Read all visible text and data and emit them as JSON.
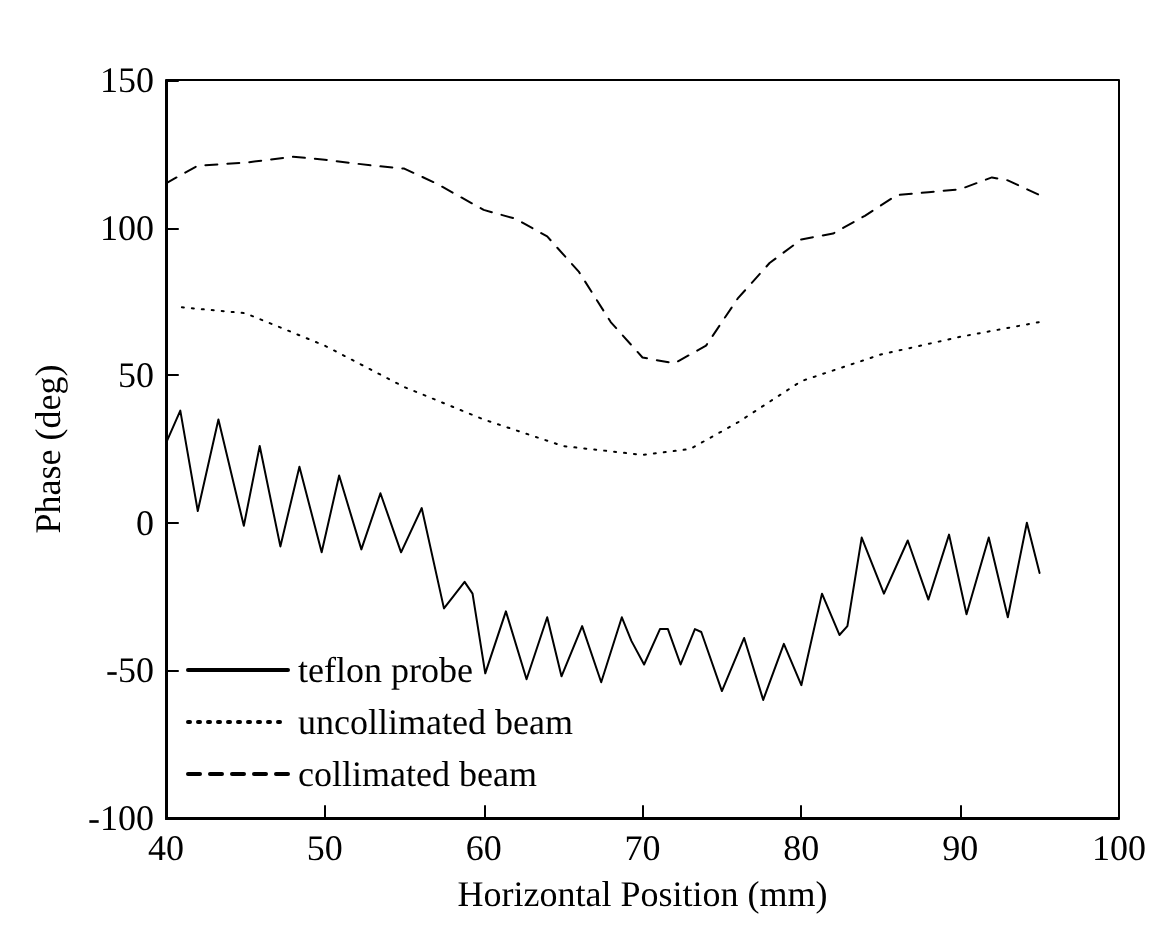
{
  "chart_data": {
    "type": "line",
    "xlabel": "Horizontal Position (mm)",
    "ylabel": "Phase (deg)",
    "xlim": [
      40,
      100
    ],
    "xticks": [
      40,
      50,
      60,
      70,
      80,
      90,
      100
    ],
    "ylim": [
      -100,
      150
    ],
    "yticks": [
      -100,
      -50,
      0,
      50,
      100,
      150
    ],
    "grid": false,
    "legend": "bottom left",
    "marker": "none",
    "series": [
      {
        "name": "teflon probe",
        "color": "#000000",
        "line_style": "solid",
        "x": [
          40,
          40.9,
          42,
          43.3,
          44.9,
          45.9,
          47.2,
          48.4,
          49.8,
          50.9,
          52.3,
          53.5,
          54.8,
          56.1,
          57.5,
          58.8,
          59.3,
          60.1,
          61.4,
          62.7,
          64,
          64.9,
          66.2,
          67.4,
          68.7,
          69.3,
          70.1,
          71.1,
          71.6,
          72.4,
          73.3,
          73.7,
          75,
          76.4,
          77.6,
          78.9,
          80,
          81.3,
          82.4,
          82.9,
          83.8,
          85.2,
          86.7,
          88,
          89.3,
          90.4,
          91.8,
          93,
          94.2,
          95
        ],
        "values": [
          27,
          38,
          4,
          35,
          -1,
          26,
          -8,
          19,
          -10,
          16,
          -9,
          10,
          -10,
          5,
          -29,
          -20,
          -24,
          -51,
          -30,
          -53,
          -32,
          -52,
          -35,
          -54,
          -32,
          -40,
          -48,
          -36,
          -36,
          -48,
          -36,
          -37,
          -57,
          -39,
          -60,
          -41,
          -55,
          -24,
          -38,
          -35,
          -5,
          -24,
          -6,
          -26,
          -4,
          -31,
          -5,
          -32,
          0,
          -17
        ]
      },
      {
        "name": "uncollimated beam",
        "color": "#000000",
        "line_style": "dotted",
        "x": [
          41,
          45,
          50,
          55,
          60,
          65,
          70,
          73,
          76,
          80,
          85,
          90,
          95
        ],
        "values": [
          73,
          71,
          60,
          46,
          35,
          26,
          23,
          25,
          34,
          48,
          57,
          63,
          68
        ]
      },
      {
        "name": "collimated beam",
        "color": "#000000",
        "line_style": "dashed",
        "x": [
          40,
          42,
          45,
          48,
          50,
          53,
          55,
          57,
          60,
          62,
          64,
          66,
          68,
          70,
          72,
          74,
          76,
          78,
          80,
          82,
          84,
          86,
          88,
          90,
          92,
          93,
          95
        ],
        "values": [
          115,
          121,
          122,
          124,
          123,
          121,
          120,
          115,
          106,
          103,
          97,
          85,
          68,
          56,
          54,
          60,
          76,
          88,
          96,
          98,
          104,
          111,
          112,
          113,
          117,
          116,
          111
        ]
      }
    ]
  }
}
